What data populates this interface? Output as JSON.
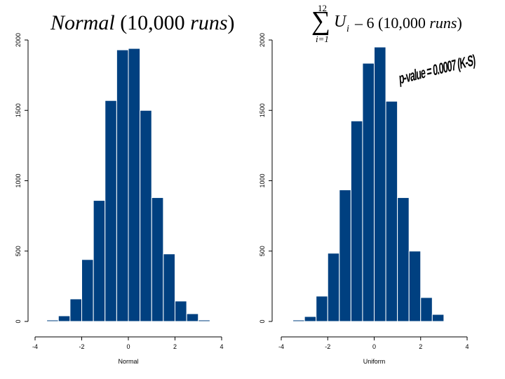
{
  "colors": {
    "bar": "#004080",
    "axis": "#000000"
  },
  "titles": {
    "left": {
      "italic_word": "Normal",
      "rest": "(10,000 ",
      "italic_tail": "runs",
      "close": ")"
    },
    "right": {
      "sum_top": "12",
      "sum_bottom": "i=1",
      "sum_symbol": "∑",
      "var": "U",
      "sub": "i",
      "rest": "– 6 (10,000 ",
      "italic_tail": "runs",
      "close": ")"
    }
  },
  "annotation": {
    "text": "p-value = 0.0007 (K-S)"
  },
  "chart_data": [
    {
      "type": "bar",
      "title": "Normal (10,000 runs)",
      "xlabel": "Normal",
      "ylabel": "",
      "bin_width": 0.5,
      "bin_left_edges": [
        -3.5,
        -3.0,
        -2.5,
        -2.0,
        -1.5,
        -1.0,
        -0.5,
        0.0,
        0.5,
        1.0,
        1.5,
        2.0,
        2.5,
        3.0
      ],
      "values": [
        10,
        40,
        160,
        440,
        860,
        1570,
        1930,
        1940,
        1500,
        880,
        480,
        145,
        55,
        10
      ],
      "xlim": [
        -4,
        4
      ],
      "ylim": [
        0,
        2000
      ],
      "xticks": [
        -4,
        -2,
        0,
        2,
        4
      ],
      "yticks": [
        0,
        500,
        1000,
        1500,
        2000
      ]
    },
    {
      "type": "bar",
      "title": "Σ(i=1..12) U_i − 6 (10,000 runs)",
      "xlabel": "Uniform",
      "ylabel": "",
      "bin_width": 0.5,
      "bin_left_edges": [
        -3.5,
        -3.0,
        -2.5,
        -2.0,
        -1.5,
        -1.0,
        -0.5,
        0.0,
        0.5,
        1.0,
        1.5,
        2.0,
        2.5
      ],
      "values": [
        10,
        35,
        180,
        485,
        935,
        1425,
        1835,
        1950,
        1565,
        880,
        500,
        170,
        50
      ],
      "xlim": [
        -4,
        4
      ],
      "ylim": [
        0,
        2000
      ],
      "xticks": [
        -4,
        -2,
        0,
        2,
        4
      ],
      "yticks": [
        0,
        500,
        1000,
        1500,
        2000
      ]
    }
  ]
}
